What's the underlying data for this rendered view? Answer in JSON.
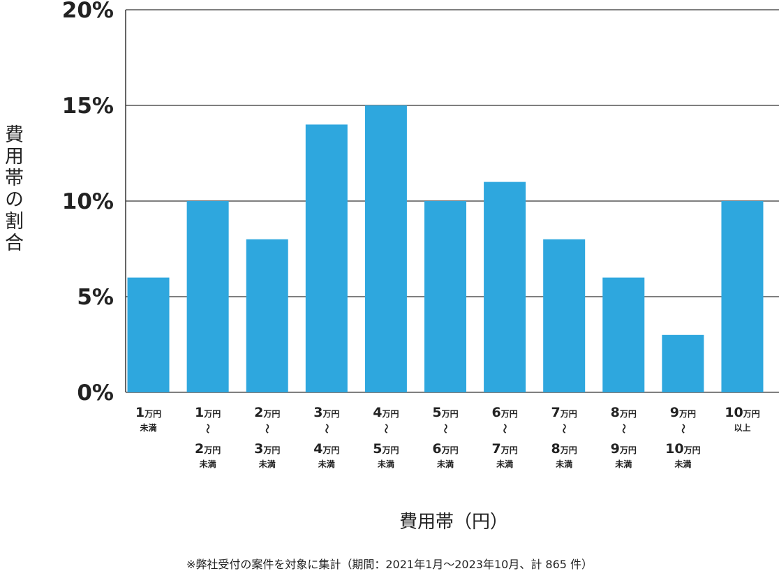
{
  "chart_data": {
    "type": "bar",
    "ylabel": "費用帯の割合",
    "xlabel": "費用帯（円）",
    "footnote": "※弊社受付の案件を対象に集計（期間：2021年1月～2023年10月、計 865 件）",
    "ylim": [
      0,
      20
    ],
    "yticks": [
      {
        "value": 0,
        "label": "0%"
      },
      {
        "value": 5,
        "label": "5%"
      },
      {
        "value": 10,
        "label": "10%"
      },
      {
        "value": 15,
        "label": "15%"
      },
      {
        "value": 20,
        "label": "20%"
      }
    ],
    "grid": true,
    "bar_color": "#2ea7de",
    "categories": [
      {
        "from": "1",
        "to": null,
        "suffix": "未満"
      },
      {
        "from": "1",
        "to": "2",
        "suffix": "未満"
      },
      {
        "from": "2",
        "to": "3",
        "suffix": "未満"
      },
      {
        "from": "3",
        "to": "4",
        "suffix": "未満"
      },
      {
        "from": "4",
        "to": "5",
        "suffix": "未満"
      },
      {
        "from": "5",
        "to": "6",
        "suffix": "未満"
      },
      {
        "from": "6",
        "to": "7",
        "suffix": "未満"
      },
      {
        "from": "7",
        "to": "8",
        "suffix": "未満"
      },
      {
        "from": "8",
        "to": "9",
        "suffix": "未満"
      },
      {
        "from": "9",
        "to": "10",
        "suffix": "未満"
      },
      {
        "from": "10",
        "to": null,
        "suffix": "以上"
      }
    ],
    "unit": "万円",
    "range_mark": "～",
    "values": [
      6,
      10,
      8,
      14,
      15,
      10,
      11,
      8,
      6,
      3,
      10
    ]
  }
}
